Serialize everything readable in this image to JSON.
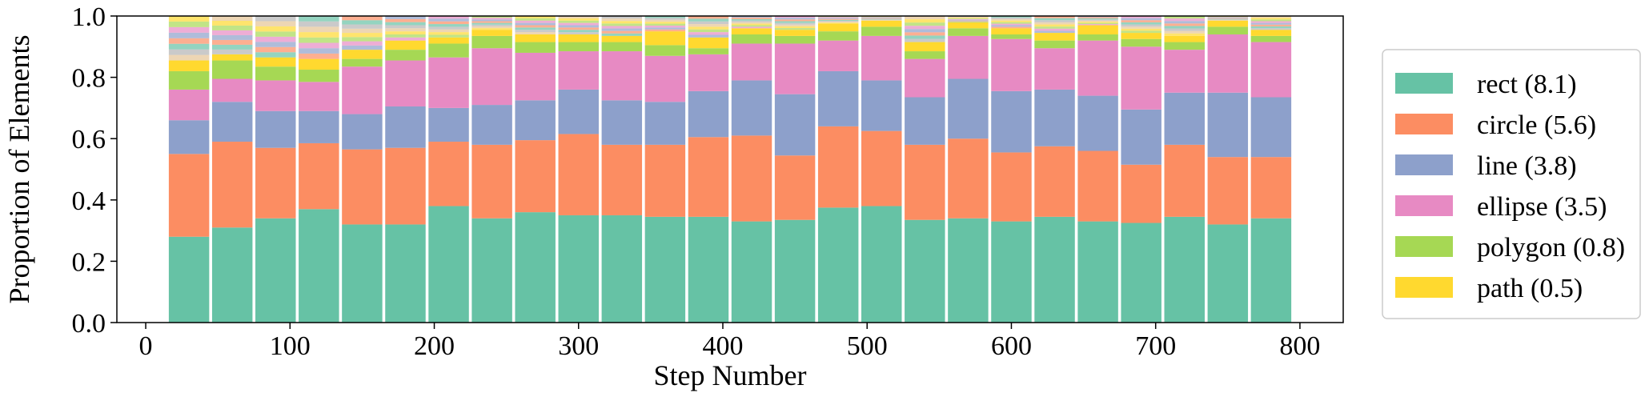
{
  "chart_data": {
    "type": "bar",
    "stacked": true,
    "normalized": true,
    "xlabel": "Step Number",
    "ylabel": "Proportion of Elements",
    "xlim": [
      -20,
      830
    ],
    "ylim": [
      0,
      1.0
    ],
    "xticks": [
      0,
      100,
      200,
      300,
      400,
      500,
      600,
      700,
      800
    ],
    "yticks": [
      0.0,
      0.2,
      0.4,
      0.6,
      0.8,
      1.0
    ],
    "xtick_labels": [
      "0",
      "100",
      "200",
      "300",
      "400",
      "500",
      "600",
      "700",
      "800"
    ],
    "ytick_labels": [
      "0.0",
      "0.2",
      "0.4",
      "0.6",
      "0.8",
      "1.0"
    ],
    "grid": false,
    "legend_position": "right, outside",
    "bar_centers": [
      30,
      60,
      90,
      120,
      150,
      180,
      210,
      240,
      270,
      300,
      330,
      360,
      390,
      420,
      450,
      480,
      510,
      540,
      570,
      600,
      630,
      660,
      690,
      720,
      750,
      780
    ],
    "series": [
      {
        "name": "rect (8.1)",
        "color": "#66c2a5",
        "values": [
          0.28,
          0.31,
          0.34,
          0.37,
          0.32,
          0.32,
          0.38,
          0.34,
          0.36,
          0.35,
          0.35,
          0.345,
          0.345,
          0.33,
          0.335,
          0.375,
          0.38,
          0.335,
          0.34,
          0.33,
          0.345,
          0.33,
          0.325,
          0.345,
          0.32,
          0.34
        ]
      },
      {
        "name": "circle (5.6)",
        "color": "#fc8d62",
        "values": [
          0.27,
          0.28,
          0.23,
          0.215,
          0.245,
          0.25,
          0.21,
          0.24,
          0.235,
          0.265,
          0.23,
          0.235,
          0.26,
          0.28,
          0.21,
          0.265,
          0.245,
          0.245,
          0.26,
          0.225,
          0.23,
          0.23,
          0.19,
          0.235,
          0.22,
          0.2
        ]
      },
      {
        "name": "line (3.8)",
        "color": "#8da0cb",
        "values": [
          0.11,
          0.13,
          0.12,
          0.105,
          0.115,
          0.135,
          0.11,
          0.13,
          0.13,
          0.145,
          0.145,
          0.14,
          0.15,
          0.18,
          0.2,
          0.18,
          0.165,
          0.155,
          0.195,
          0.2,
          0.185,
          0.18,
          0.18,
          0.17,
          0.21,
          0.195
        ]
      },
      {
        "name": "ellipse (3.5)",
        "color": "#e78ac3",
        "values": [
          0.1,
          0.075,
          0.1,
          0.095,
          0.155,
          0.15,
          0.165,
          0.185,
          0.155,
          0.125,
          0.16,
          0.15,
          0.12,
          0.12,
          0.165,
          0.1,
          0.145,
          0.125,
          0.14,
          0.17,
          0.135,
          0.18,
          0.205,
          0.14,
          0.19,
          0.18
        ]
      },
      {
        "name": "polygon (0.8)",
        "color": "#a6d854",
        "values": [
          0.06,
          0.06,
          0.045,
          0.04,
          0.025,
          0.035,
          0.045,
          0.04,
          0.035,
          0.03,
          0.03,
          0.035,
          0.02,
          0.03,
          0.025,
          0.03,
          0.03,
          0.025,
          0.025,
          0.015,
          0.025,
          0.02,
          0.025,
          0.025,
          0.025,
          0.02
        ]
      },
      {
        "name": "path (0.5)",
        "color": "#ffd92f",
        "values": [
          0.035,
          0.02,
          0.03,
          0.035,
          0.03,
          0.03,
          0.02,
          0.02,
          0.025,
          0.025,
          0.02,
          0.045,
          0.035,
          0.02,
          0.02,
          0.025,
          0.02,
          0.03,
          0.02,
          0.02,
          0.025,
          0.03,
          0.02,
          0.02,
          0.02,
          0.02
        ]
      }
    ],
    "other_colors": [
      "#e5c494",
      "#b3b3b3",
      "#66c2a5",
      "#fc8d62",
      "#8da0cb",
      "#e78ac3",
      "#a6d854",
      "#ffd92f"
    ]
  }
}
